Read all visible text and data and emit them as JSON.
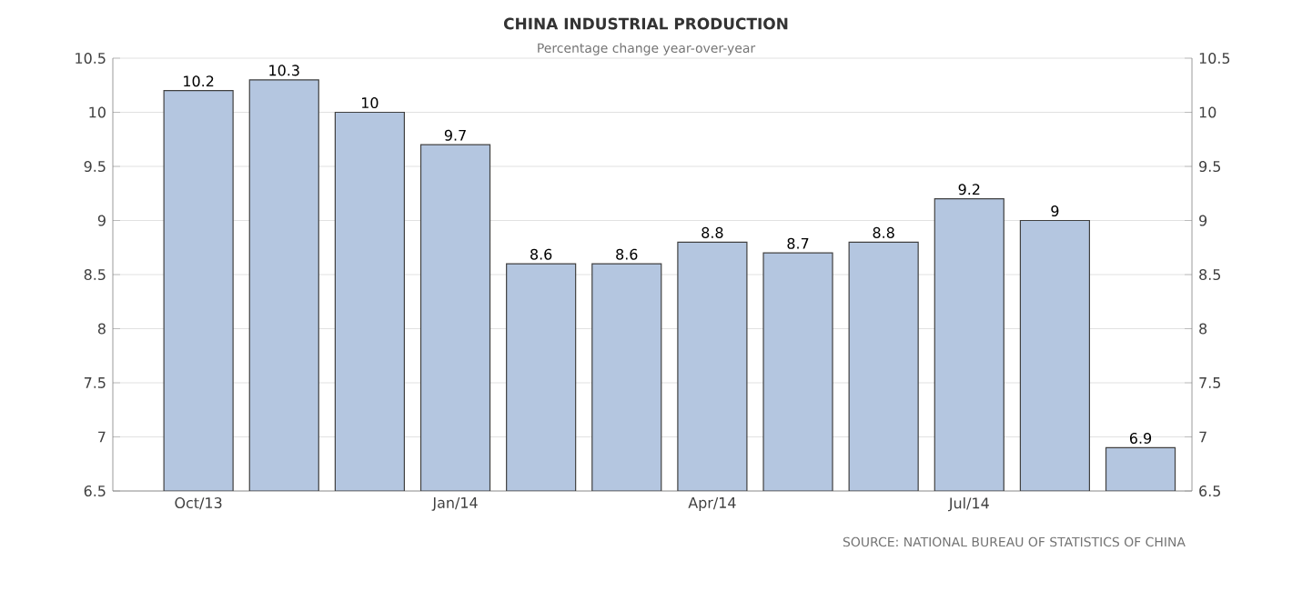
{
  "chart_data": {
    "type": "bar",
    "title": "CHINA INDUSTRIAL PRODUCTION",
    "subtitle": "Percentage change year-over-year",
    "categories": [
      "Oct/13",
      null,
      null,
      "Jan/14",
      null,
      null,
      "Apr/14",
      null,
      null,
      "Jul/14",
      null,
      null
    ],
    "values": [
      10.2,
      10.3,
      10,
      9.7,
      8.6,
      8.6,
      8.8,
      8.7,
      8.8,
      9.2,
      9,
      6.9
    ],
    "color": "#b4c6e0",
    "ylim": [
      6.5,
      10.5
    ],
    "yticks": [
      6.5,
      7,
      7.5,
      8,
      8.5,
      9,
      9.5,
      10,
      10.5
    ],
    "y2lim": [
      6.5,
      10.5
    ],
    "y2ticks": [
      6.5,
      7,
      7.5,
      8,
      8.5,
      9,
      9.5,
      10,
      10.5
    ],
    "grid": "y",
    "data_labels": true,
    "annotations": [
      "SOURCE: NATIONAL BUREAU OF STATISTICS OF CHINA"
    ]
  }
}
